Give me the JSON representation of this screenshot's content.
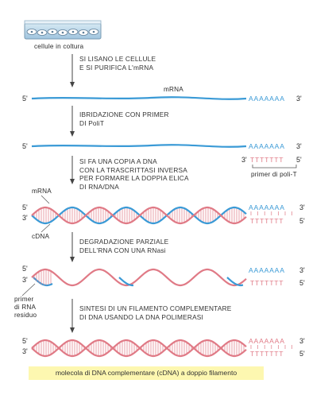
{
  "cells_label": "cellule in coltura",
  "steps": [
    {
      "lines": [
        "SI LISANO LE CELLULE",
        "E SI PURIFICA L'mRNA"
      ]
    },
    {
      "lines": [
        "IBRIDAZIONE CON PRIMER",
        "DI PoliT"
      ]
    },
    {
      "lines": [
        "SI FA UNA COPIA A DNA",
        "CON LA TRASCRITTASI INVERSA",
        "PER FORMARE LA DOPPIA ELICA",
        "DI RNA/DNA"
      ]
    },
    {
      "lines": [
        "DEGRADAZIONE PARZIALE",
        "DELL'RNA CON UNA RNasi"
      ]
    },
    {
      "lines": [
        "SINTESI DI UN FILAMENTO COMPLEMENTARE",
        "DI DNA USANDO LA DNA POLIMERASI"
      ]
    }
  ],
  "labels": {
    "mrna": "mRNA",
    "poly_a": "AAAAAAA",
    "poly_t": "TTTTTTT",
    "five_prime": "5'",
    "three_prime": "3'",
    "primer_poly_t": "primer di poli-T",
    "mrna_side": "mRNA",
    "cdna_side": "cDNA",
    "primer_residuo": [
      "primer",
      "di RNA",
      "residuo"
    ]
  },
  "caption": "molecola di DNA complementare (cDNA) a doppio filamento",
  "colors": {
    "rna": "#3a9ad6",
    "dna": "#e07a86",
    "caption_bg": "#fdf7b0",
    "arrow": "#444444"
  }
}
